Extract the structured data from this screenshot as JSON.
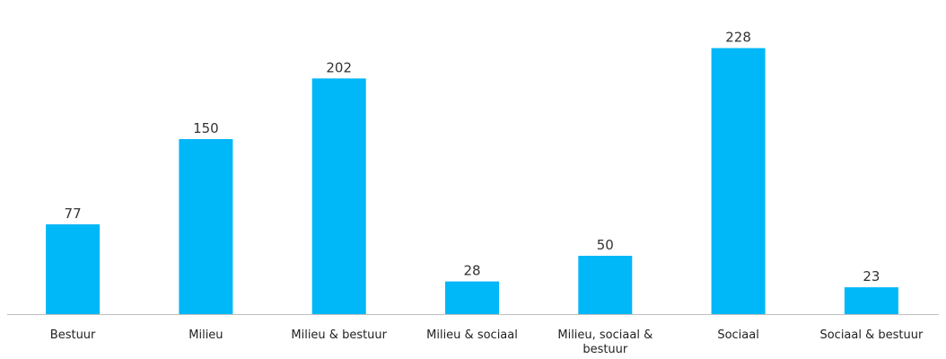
{
  "chart_data": {
    "type": "bar",
    "title": "",
    "xlabel": "",
    "ylabel": "",
    "categories": [
      "Bestuur",
      "Milieu",
      "Milieu & bestuur",
      "Milieu & sociaal",
      "Milieu, sociaal & bestuur",
      "Sociaal",
      "Sociaal & bestuur"
    ],
    "category_lines": [
      [
        "Bestuur"
      ],
      [
        "Milieu"
      ],
      [
        "Milieu & bestuur"
      ],
      [
        "Milieu & sociaal"
      ],
      [
        "Milieu, sociaal &",
        "bestuur"
      ],
      [
        "Sociaal"
      ],
      [
        "Sociaal & bestuur"
      ]
    ],
    "values": [
      77,
      150,
      202,
      28,
      50,
      228,
      23
    ],
    "data_labels": [
      "77",
      "150",
      "202",
      "28",
      "50",
      "228",
      "23"
    ],
    "ylim": [
      0,
      245
    ],
    "grid": false,
    "legend": "none",
    "bar_color": "#00B7F7",
    "axis_color": "#BFBFBF",
    "label_color": "#333333"
  }
}
